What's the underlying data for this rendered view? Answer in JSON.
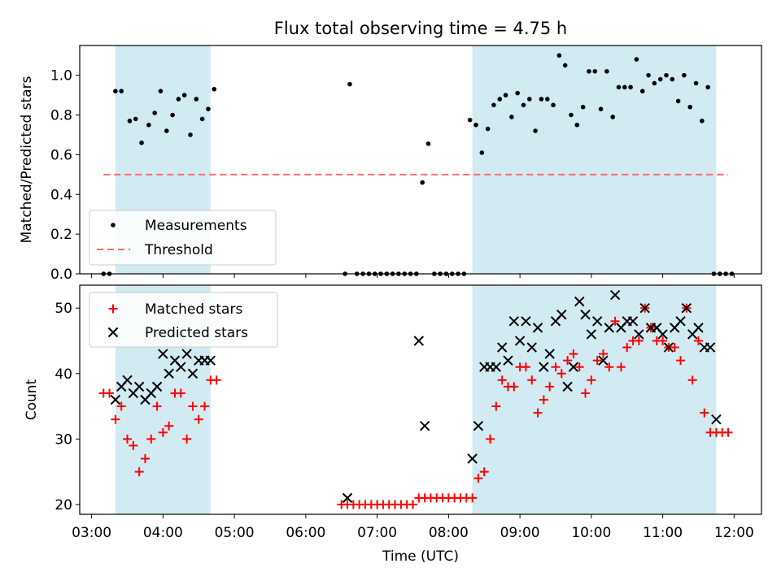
{
  "title": "Flux total observing time = 4.75 h",
  "colors": {
    "band": "#add8e6",
    "threshold": "#ff6b6b",
    "matched": "#ff0000",
    "predicted": "#000000",
    "points": "#000000"
  },
  "chart_data": [
    {
      "type": "scatter",
      "ylabel": "Matched/Predicted stars",
      "ylim": [
        0,
        1.15
      ],
      "yticks": [
        0.0,
        0.2,
        0.4,
        0.6,
        0.8,
        1.0
      ],
      "ytick_labels": [
        "0.0",
        "0.2",
        "0.4",
        "0.6",
        "0.8",
        "1.0"
      ],
      "xlim": [
        "02:50",
        "12:23"
      ],
      "shaded_intervals": [
        [
          "03:20",
          "04:40"
        ],
        [
          "08:20",
          "11:45"
        ]
      ],
      "legend_position": "lower-left",
      "threshold": {
        "name": "Threshold",
        "value": 0.5,
        "x": [
          "03:10",
          "11:55"
        ]
      },
      "series": [
        {
          "name": "Measurements",
          "marker": "dot",
          "x": [
            "03:10",
            "03:15",
            "03:20",
            "03:25",
            "03:32",
            "03:37",
            "03:42",
            "03:48",
            "03:53",
            "03:58",
            "04:03",
            "04:08",
            "04:13",
            "04:18",
            "04:23",
            "04:28",
            "04:33",
            "04:38",
            "04:43",
            "06:33",
            "06:37",
            "06:43",
            "06:48",
            "06:53",
            "06:58",
            "07:03",
            "07:08",
            "07:13",
            "07:18",
            "07:23",
            "07:28",
            "07:33",
            "07:38",
            "07:43",
            "07:48",
            "07:53",
            "07:58",
            "08:03",
            "08:08",
            "08:13",
            "08:18",
            "08:23",
            "08:28",
            "08:33",
            "08:38",
            "08:43",
            "08:48",
            "08:53",
            "08:58",
            "09:03",
            "09:08",
            "09:13",
            "09:18",
            "09:23",
            "09:28",
            "09:33",
            "09:38",
            "09:43",
            "09:48",
            "09:53",
            "09:58",
            "10:03",
            "10:08",
            "10:13",
            "10:18",
            "10:23",
            "10:28",
            "10:33",
            "10:38",
            "10:43",
            "10:48",
            "10:53",
            "10:58",
            "11:03",
            "11:08",
            "11:13",
            "11:18",
            "11:23",
            "11:28",
            "11:33",
            "11:38",
            "11:43",
            "11:48",
            "11:53",
            "11:58"
          ],
          "y": [
            0.0,
            0.0,
            0.92,
            0.92,
            0.77,
            0.78,
            0.66,
            0.75,
            0.81,
            0.92,
            0.72,
            0.8,
            0.88,
            0.9,
            0.7,
            0.88,
            0.78,
            0.83,
            0.93,
            0.0,
            0.955,
            0.0,
            0.0,
            0.0,
            0.0,
            0.0,
            0.0,
            0.0,
            0.0,
            0.0,
            0.0,
            0.0,
            0.46,
            0.655,
            0.0,
            0.0,
            0.0,
            0.0,
            0.0,
            0.0,
            0.775,
            0.75,
            0.61,
            0.73,
            0.85,
            0.88,
            0.9,
            0.79,
            0.91,
            0.85,
            0.88,
            0.72,
            0.88,
            0.88,
            0.85,
            1.1,
            1.05,
            0.8,
            0.75,
            0.84,
            1.02,
            1.02,
            0.83,
            1.02,
            0.79,
            0.94,
            0.94,
            0.94,
            1.08,
            0.92,
            1.0,
            0.96,
            0.98,
            1.0,
            0.98,
            0.87,
            1.0,
            0.84,
            0.96,
            0.77,
            0.94,
            0.0,
            0.0,
            0.0,
            0.0
          ]
        }
      ]
    },
    {
      "type": "scatter",
      "xlabel": "Time (UTC)",
      "ylabel": "Count",
      "ylim": [
        18.5,
        53.5
      ],
      "yticks": [
        20,
        30,
        40,
        50
      ],
      "ytick_labels": [
        "20",
        "30",
        "40",
        "50"
      ],
      "xlim": [
        "02:50",
        "12:23"
      ],
      "xticks": [
        "03:00",
        "04:00",
        "05:00",
        "06:00",
        "07:00",
        "08:00",
        "09:00",
        "10:00",
        "11:00",
        "12:00"
      ],
      "xtick_labels": [
        "03:00",
        "04:00",
        "05:00",
        "06:00",
        "07:00",
        "08:00",
        "09:00",
        "10:00",
        "11:00",
        "12:00"
      ],
      "shaded_intervals": [
        [
          "03:20",
          "04:40"
        ],
        [
          "08:20",
          "11:45"
        ]
      ],
      "legend_position": "upper-left",
      "series": [
        {
          "name": "Matched stars",
          "marker": "plus",
          "x": [
            "03:10",
            "03:15",
            "03:20",
            "03:25",
            "03:30",
            "03:35",
            "03:40",
            "03:45",
            "03:50",
            "03:55",
            "04:00",
            "04:05",
            "04:10",
            "04:15",
            "04:20",
            "04:25",
            "04:30",
            "04:35",
            "04:40",
            "04:45",
            "06:30",
            "06:35",
            "06:40",
            "06:45",
            "06:50",
            "06:55",
            "07:00",
            "07:05",
            "07:10",
            "07:15",
            "07:20",
            "07:25",
            "07:30",
            "07:35",
            "07:40",
            "07:45",
            "07:50",
            "07:55",
            "08:00",
            "08:05",
            "08:10",
            "08:15",
            "08:20",
            "08:25",
            "08:30",
            "08:35",
            "08:40",
            "08:45",
            "08:50",
            "08:55",
            "09:00",
            "09:05",
            "09:10",
            "09:15",
            "09:20",
            "09:25",
            "09:30",
            "09:35",
            "09:40",
            "09:45",
            "09:50",
            "09:55",
            "10:00",
            "10:05",
            "10:10",
            "10:15",
            "10:20",
            "10:25",
            "10:30",
            "10:35",
            "10:40",
            "10:45",
            "10:50",
            "10:55",
            "11:00",
            "11:05",
            "11:10",
            "11:15",
            "11:20",
            "11:25",
            "11:30",
            "11:35",
            "11:40",
            "11:45",
            "11:50",
            "11:55"
          ],
          "y": [
            37,
            37,
            33,
            35,
            30,
            29,
            25,
            27,
            30,
            35,
            31,
            32,
            37,
            37,
            30,
            35,
            33,
            35,
            39,
            39,
            20,
            20,
            20,
            20,
            20,
            20,
            20,
            20,
            20,
            20,
            20,
            20,
            20,
            21,
            21,
            21,
            21,
            21,
            21,
            21,
            21,
            21,
            21,
            24,
            25,
            30,
            35,
            39,
            38,
            38,
            41,
            41,
            39,
            34,
            36,
            38,
            41,
            40,
            42,
            43,
            41,
            37,
            39,
            42,
            43,
            41,
            48,
            41,
            44,
            45,
            45,
            50,
            47,
            45,
            45,
            44,
            44,
            42,
            50,
            39,
            45,
            34,
            31,
            31,
            31,
            31
          ],
          "y_note": ""
        },
        {
          "name": "Predicted stars",
          "marker": "x",
          "x": [
            "03:20",
            "03:25",
            "03:30",
            "03:35",
            "03:40",
            "03:45",
            "03:50",
            "03:55",
            "04:00",
            "04:05",
            "04:10",
            "04:15",
            "04:20",
            "04:25",
            "04:30",
            "04:35",
            "04:40",
            "06:35",
            "07:35",
            "07:40",
            "08:20",
            "08:25",
            "08:30",
            "08:35",
            "08:40",
            "08:45",
            "08:50",
            "08:55",
            "09:00",
            "09:05",
            "09:10",
            "09:15",
            "09:20",
            "09:25",
            "09:30",
            "09:35",
            "09:40",
            "09:45",
            "09:50",
            "09:55",
            "10:00",
            "10:05",
            "10:10",
            "10:15",
            "10:20",
            "10:25",
            "10:30",
            "10:35",
            "10:40",
            "10:45",
            "10:50",
            "10:55",
            "11:00",
            "11:05",
            "11:10",
            "11:15",
            "11:20",
            "11:25",
            "11:30",
            "11:35",
            "11:40",
            "11:45"
          ],
          "y": [
            36,
            38,
            39,
            37,
            38,
            36,
            37,
            38,
            43,
            40,
            42,
            41,
            43,
            40,
            42,
            42,
            42,
            21,
            45,
            32,
            27,
            32,
            41,
            41,
            41,
            44,
            42,
            48,
            45,
            48,
            44,
            47,
            41,
            43,
            48,
            49,
            38,
            41,
            51,
            49,
            46,
            48,
            42,
            47,
            52,
            47,
            48,
            48,
            46,
            50,
            47,
            47,
            46,
            44,
            47,
            48,
            50,
            46,
            47,
            44,
            44,
            33
          ]
        }
      ]
    }
  ]
}
